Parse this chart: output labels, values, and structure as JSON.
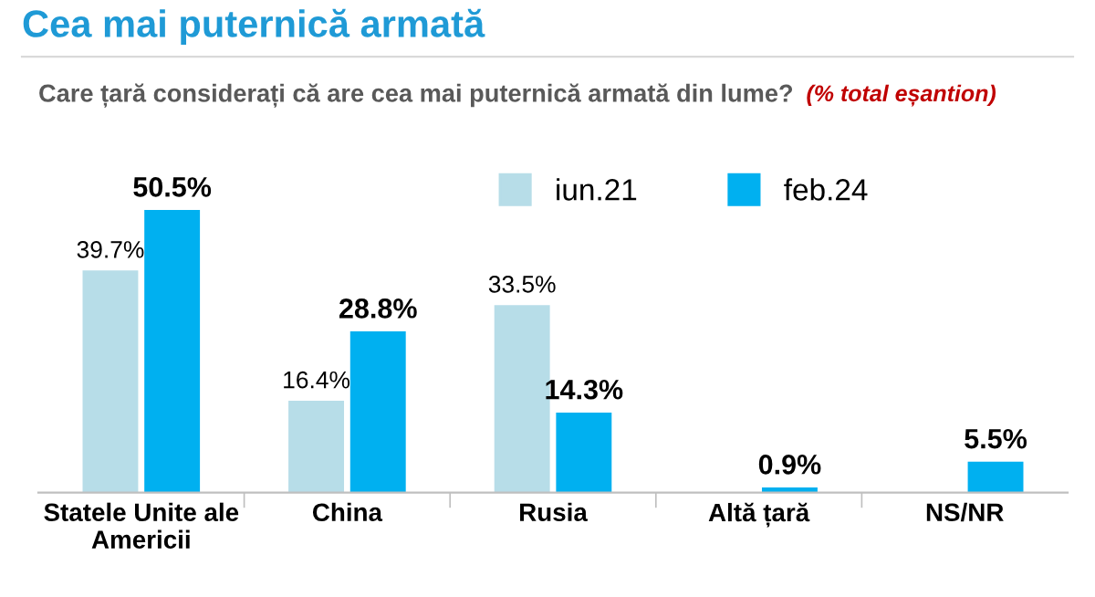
{
  "chart_data": {
    "type": "bar",
    "title": "Cea mai puternică armată",
    "subtitle": "Care țară considerați că are cea mai puternică armată din lume?",
    "annotations": [
      "(% total eșantion)"
    ],
    "categories": [
      "Statele Unite ale Americii",
      "China",
      "Rusia",
      "Altă țară",
      "NS/NR"
    ],
    "series": [
      {
        "name": "iun.21",
        "color": "#b7dde8",
        "values": [
          39.7,
          16.4,
          33.5,
          null,
          null
        ],
        "value_labels": [
          "39.7%",
          "16.4%",
          "33.5%",
          null,
          null
        ]
      },
      {
        "name": "feb.24",
        "color": "#00b0f0",
        "values": [
          50.5,
          28.8,
          14.3,
          0.9,
          5.5
        ],
        "value_labels": [
          "50.5%",
          "28.8%",
          "14.3%",
          "0.9%",
          "5.5%"
        ]
      }
    ],
    "legend": "top",
    "grid": false
  }
}
